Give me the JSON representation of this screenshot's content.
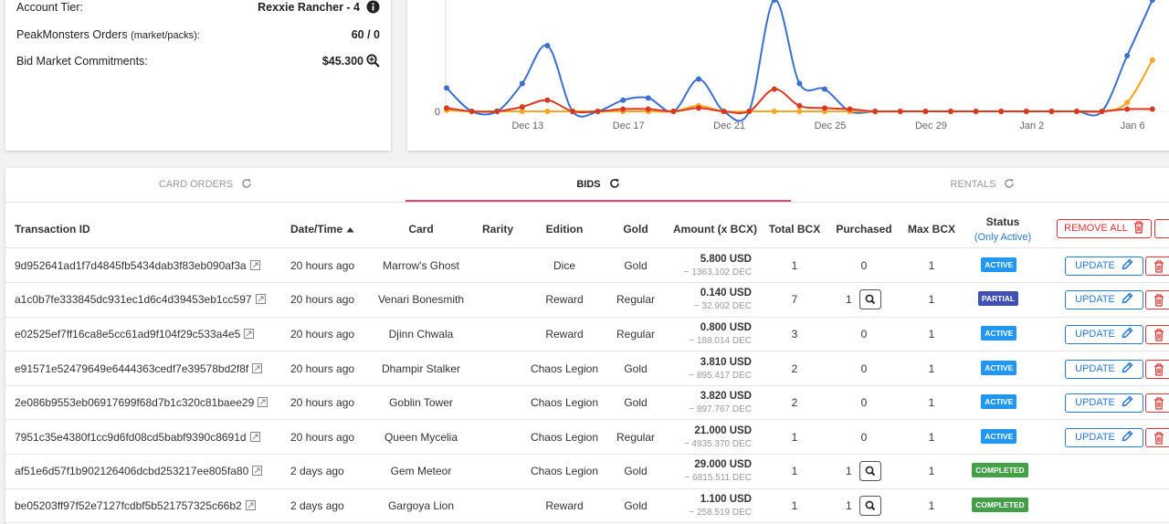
{
  "account": {
    "tier_label": "Account Tier:",
    "tier_value": "Rexxie Rancher - 4",
    "orders_label": "PeakMonsters Orders",
    "orders_note": "(market/packs):",
    "orders_value": "60 / 0",
    "bids_label": "Bid Market Commitments:",
    "bids_value": "$45.300"
  },
  "chart_data": {
    "type": "line",
    "categories": [
      null,
      null,
      null,
      "Dec 13",
      null,
      null,
      null,
      "Dec 17",
      null,
      null,
      null,
      "Dec 21",
      null,
      null,
      null,
      "Dec 25",
      null,
      null,
      null,
      "Dec 29",
      null,
      null,
      null,
      "Jan 2",
      null,
      null,
      null,
      "Jan 6",
      null
    ],
    "series": [
      {
        "color": "#3a6fd0",
        "values": [
          2.1,
          0,
          0,
          2.5,
          5.9,
          0,
          0,
          1.0,
          1.2,
          0,
          2.9,
          0,
          0,
          10,
          2.5,
          2.0,
          0,
          0,
          0,
          0,
          0,
          0,
          0,
          0,
          0,
          0,
          0,
          5.0,
          10
        ]
      },
      {
        "color": "#f5a623",
        "values": [
          0.1,
          0,
          0,
          0,
          0,
          0,
          0,
          0,
          0,
          0,
          0.5,
          0,
          0,
          0,
          0,
          0,
          0,
          0,
          0,
          0,
          0,
          0,
          0,
          0,
          0,
          0,
          0,
          0.8,
          4.6
        ]
      },
      {
        "color": "#d9381e",
        "values": [
          0.3,
          0,
          0,
          0.4,
          1.0,
          0,
          0,
          0.2,
          0.2,
          0,
          0.3,
          0,
          0,
          2.0,
          0.5,
          0.3,
          0.2,
          0,
          0,
          0,
          0,
          0,
          0,
          0,
          0,
          0,
          0,
          0.2,
          0.2
        ]
      }
    ],
    "ylim": [
      0,
      10
    ],
    "yticks": [
      0
    ]
  },
  "tabs": [
    "CARD ORDERS",
    "BIDS",
    "RENTALS"
  ],
  "table": {
    "headers": [
      "Transaction ID",
      "Date/Time",
      "Card",
      "Rarity",
      "Edition",
      "Gold",
      "Amount (x BCX)",
      "Total BCX",
      "Purchased",
      "Max BCX",
      "Status"
    ],
    "status_note": "(Only Active)",
    "remove_all": "REMOVE ALL",
    "update_label": "UPDATE",
    "rows": [
      {
        "id": "9d952641ad1f7d4845fb5434dab3f83eb090af3a",
        "time": "20 hours ago",
        "card": "Marrow's Ghost",
        "edition": "Dice",
        "gold": "Gold",
        "usd": "5.800 USD",
        "dec": "~ 1363.102 DEC",
        "total": 1,
        "purchased": 0,
        "max": 1,
        "status": "ACTIVE"
      },
      {
        "id": "a1c0b7fe333845dc931ec1d6c4d39453eb1cc597",
        "time": "20 hours ago",
        "card": "Venari Bonesmith",
        "edition": "Reward",
        "gold": "Regular",
        "usd": "0.140 USD",
        "dec": "~ 32.902 DEC",
        "total": 7,
        "purchased": 1,
        "max": 1,
        "status": "PARTIAL"
      },
      {
        "id": "e02525ef7ff16ca8e5cc61ad9f104f29c533a4e5",
        "time": "20 hours ago",
        "card": "Djinn Chwala",
        "edition": "Reward",
        "gold": "Regular",
        "usd": "0.800 USD",
        "dec": "~ 188.014 DEC",
        "total": 3,
        "purchased": 0,
        "max": 1,
        "status": "ACTIVE"
      },
      {
        "id": "e91571e52479649e6444363cedf7e39578bd2f8f",
        "time": "20 hours ago",
        "card": "Dhampir Stalker",
        "edition": "Chaos Legion",
        "gold": "Gold",
        "usd": "3.810 USD",
        "dec": "~ 895.417 DEC",
        "total": 2,
        "purchased": 0,
        "max": 1,
        "status": "ACTIVE"
      },
      {
        "id": "2e086b9553eb06917699f68d7b1c320c81baee29",
        "time": "20 hours ago",
        "card": "Goblin Tower",
        "edition": "Chaos Legion",
        "gold": "Gold",
        "usd": "3.820 USD",
        "dec": "~ 897.767 DEC",
        "total": 2,
        "purchased": 0,
        "max": 1,
        "status": "ACTIVE"
      },
      {
        "id": "7951c35e4380f1cc9d6fd08cd5babf9390c8691d",
        "time": "20 hours ago",
        "card": "Queen Mycelia",
        "edition": "Chaos Legion",
        "gold": "Regular",
        "usd": "21.000 USD",
        "dec": "~ 4935.370 DEC",
        "total": 1,
        "purchased": 0,
        "max": 1,
        "status": "ACTIVE"
      },
      {
        "id": "af51e6d57f1b902126406dcbd253217ee805fa80",
        "time": "2 days ago",
        "card": "Gem Meteor",
        "edition": "Chaos Legion",
        "gold": "Gold",
        "usd": "29.000 USD",
        "dec": "~ 6815.511 DEC",
        "total": 1,
        "purchased": 1,
        "max": 1,
        "status": "COMPLETED"
      },
      {
        "id": "be05203ff97f52e7127fcdbf5b521757325c66b2",
        "time": "2 days ago",
        "card": "Gargoya Lion",
        "edition": "Reward",
        "gold": "Gold",
        "usd": "1.100 USD",
        "dec": "~ 258.519 DEC",
        "total": 1,
        "purchased": 1,
        "max": 1,
        "status": "COMPLETED"
      }
    ]
  }
}
